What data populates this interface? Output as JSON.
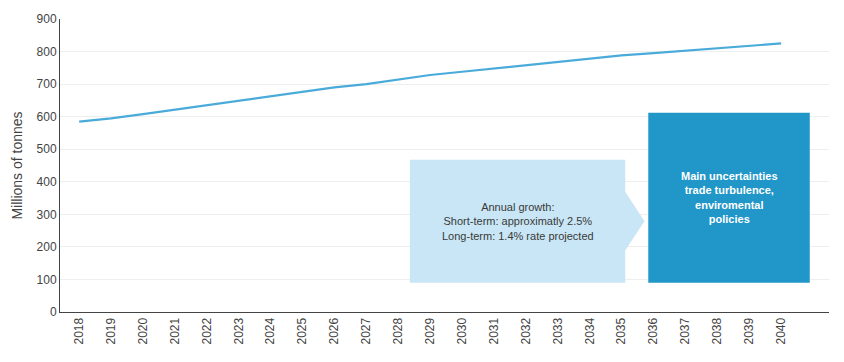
{
  "chart_data": {
    "type": "line",
    "x": [
      2018,
      2019,
      2020,
      2021,
      2022,
      2023,
      2024,
      2025,
      2026,
      2027,
      2028,
      2029,
      2030,
      2031,
      2032,
      2033,
      2034,
      2035,
      2036,
      2037,
      2038,
      2039,
      2040
    ],
    "values": [
      585,
      595,
      608,
      622,
      635,
      648,
      662,
      678,
      690,
      700,
      715,
      728,
      738,
      748,
      758,
      768,
      778,
      788,
      795,
      802,
      810,
      818,
      825
    ],
    "color": "#4AABDB",
    "ylabel": "Millions of tonnes",
    "xlim": [
      2017.4,
      2041.5
    ],
    "xticks": [
      2018,
      2019,
      2020,
      2021,
      2022,
      2023,
      2024,
      2025,
      2026,
      2027,
      2028,
      2029,
      2030,
      2031,
      2032,
      2033,
      2034,
      2035,
      2036,
      2037,
      2038,
      2039,
      2040
    ],
    "ylim": [
      0,
      900
    ],
    "yticks": [
      0,
      100,
      200,
      300,
      400,
      500,
      600,
      700,
      800,
      900
    ],
    "grid": "y",
    "annotations": [
      "Annual growth:\nShort-term: approximatly 2.5%\nLong-term: 1.4% rate projected",
      "Main uncertainties\ntrade turbulence,\nenviromental\npolicies"
    ]
  }
}
